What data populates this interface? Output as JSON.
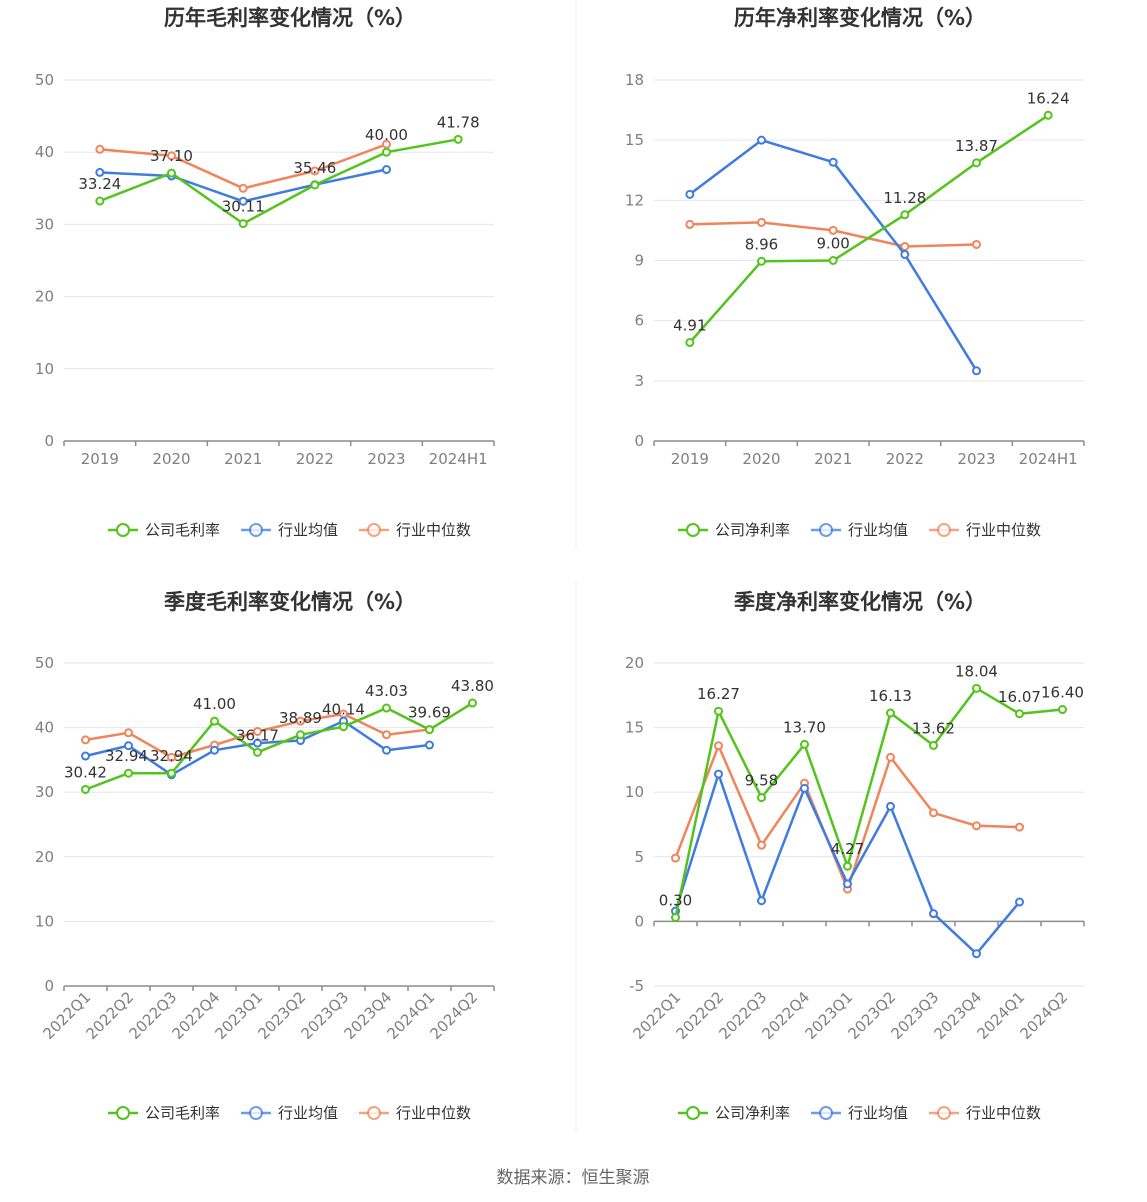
{
  "source_label": "数据来源：恒生聚源",
  "chart_data": [
    {
      "type": "line",
      "title": "历年毛利率变化情况（%）",
      "categories": [
        "2019",
        "2020",
        "2021",
        "2022",
        "2023",
        "2024H1"
      ],
      "ylim": [
        0,
        50
      ],
      "yticks": [
        0,
        10,
        20,
        30,
        40,
        50
      ],
      "grid": true,
      "legend_position": "bottom",
      "series": [
        {
          "name": "公司毛利率",
          "color": "#52c41a",
          "values": [
            33.24,
            37.1,
            30.11,
            35.46,
            40.0,
            41.78
          ],
          "labels": [
            "33.24",
            "37.10",
            "30.11",
            "35.46",
            "40.00",
            "41.78"
          ]
        },
        {
          "name": "行业均值",
          "color": "#3f7be0",
          "values": [
            37.2,
            36.7,
            33.2,
            35.5,
            37.6,
            null
          ]
        },
        {
          "name": "行业中位数",
          "color": "#f0845a",
          "values": [
            40.4,
            39.5,
            35.0,
            37.4,
            41.1,
            null
          ]
        }
      ]
    },
    {
      "type": "line",
      "title": "历年净利率变化情况（%）",
      "categories": [
        "2019",
        "2020",
        "2021",
        "2022",
        "2023",
        "2024H1"
      ],
      "ylim": [
        0,
        18
      ],
      "yticks": [
        0,
        3,
        6,
        9,
        12,
        15,
        18
      ],
      "grid": true,
      "legend_position": "bottom",
      "series": [
        {
          "name": "公司净利率",
          "color": "#52c41a",
          "values": [
            4.91,
            8.96,
            9.0,
            11.28,
            13.87,
            16.24
          ],
          "labels": [
            "4.91",
            "8.96",
            "9.00",
            "11.28",
            "13.87",
            "16.24"
          ]
        },
        {
          "name": "行业均值",
          "color": "#3f7be0",
          "values": [
            12.3,
            15.0,
            13.9,
            9.3,
            3.5,
            null
          ]
        },
        {
          "name": "行业中位数",
          "color": "#f0845a",
          "values": [
            10.8,
            10.9,
            10.5,
            9.7,
            9.8,
            null
          ]
        }
      ]
    },
    {
      "type": "line",
      "title": "季度毛利率变化情况（%）",
      "categories": [
        "2022Q1",
        "2022Q2",
        "2022Q3",
        "2022Q4",
        "2023Q1",
        "2023Q2",
        "2023Q3",
        "2023Q4",
        "2024Q1",
        "2024Q2"
      ],
      "ylim": [
        0,
        50
      ],
      "yticks": [
        0,
        10,
        20,
        30,
        40,
        50
      ],
      "grid": true,
      "legend_position": "bottom",
      "series": [
        {
          "name": "公司毛利率",
          "color": "#52c41a",
          "values": [
            30.42,
            32.94,
            32.94,
            41.0,
            36.17,
            38.89,
            40.14,
            43.03,
            39.69,
            43.8
          ],
          "labels": [
            "30.42",
            "32.94",
            "32.94",
            "41.00",
            "36.17",
            "38.89",
            "40.14",
            "43.03",
            "39.69",
            "43.80"
          ]
        },
        {
          "name": "行业均值",
          "color": "#3f7be0",
          "values": [
            35.6,
            37.2,
            32.7,
            36.5,
            37.6,
            38.0,
            41.0,
            36.5,
            37.3,
            null
          ]
        },
        {
          "name": "行业中位数",
          "color": "#f0845a",
          "values": [
            38.1,
            39.2,
            35.4,
            37.3,
            39.4,
            41.0,
            42.1,
            38.9,
            39.7,
            null
          ]
        }
      ]
    },
    {
      "type": "line",
      "title": "季度净利率变化情况（%）",
      "categories": [
        "2022Q1",
        "2022Q2",
        "2022Q3",
        "2022Q4",
        "2023Q1",
        "2023Q2",
        "2023Q3",
        "2023Q4",
        "2024Q1",
        "2024Q2"
      ],
      "ylim": [
        -5,
        20
      ],
      "yticks": [
        -5,
        0,
        5,
        10,
        15,
        20
      ],
      "grid": true,
      "legend_position": "bottom",
      "series": [
        {
          "name": "公司净利率",
          "color": "#52c41a",
          "values": [
            0.3,
            16.27,
            9.58,
            13.7,
            4.27,
            16.13,
            13.62,
            18.04,
            16.07,
            16.4
          ],
          "labels": [
            "0.30",
            "16.27",
            "9.58",
            "13.70",
            "4.27",
            "16.13",
            "13.62",
            "18.04",
            "16.07",
            "16.40"
          ]
        },
        {
          "name": "行业均值",
          "color": "#3f7be0",
          "values": [
            0.8,
            11.4,
            1.6,
            10.3,
            2.9,
            8.9,
            0.6,
            -2.5,
            1.5,
            null
          ]
        },
        {
          "name": "行业中位数",
          "color": "#f0845a",
          "values": [
            4.9,
            13.6,
            5.9,
            10.7,
            2.5,
            12.7,
            8.4,
            7.4,
            7.3,
            null
          ]
        }
      ]
    }
  ]
}
